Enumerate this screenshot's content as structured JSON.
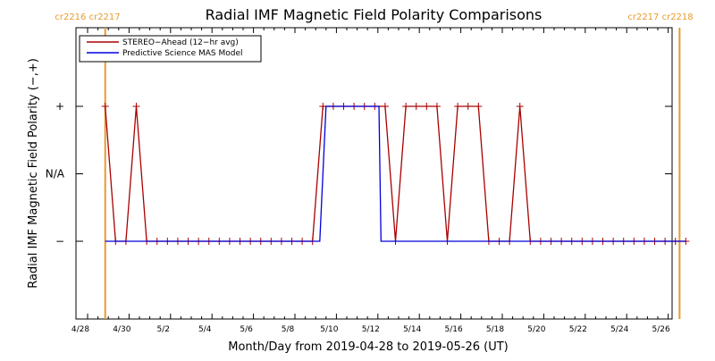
{
  "chart_data": {
    "type": "line",
    "title": "Radial IMF Magnetic Field Polarity Comparisons",
    "xlabel": "Month/Day from 2019-04-28 to 2019-05-26 (UT)",
    "ylabel": "Radial IMF Magnetic Field Polarity (−,+)",
    "xlim": [
      0,
      28.6
    ],
    "ylim": [
      -2,
      2
    ],
    "x_ticks": [
      {
        "value": 0,
        "label": "4/28"
      },
      {
        "value": 2,
        "label": "4/30"
      },
      {
        "value": 4,
        "label": "5/2"
      },
      {
        "value": 6,
        "label": "5/4"
      },
      {
        "value": 8,
        "label": "5/6"
      },
      {
        "value": 10,
        "label": "5/8"
      },
      {
        "value": 12,
        "label": "5/10"
      },
      {
        "value": 14,
        "label": "5/12"
      },
      {
        "value": 16,
        "label": "5/14"
      },
      {
        "value": 18,
        "label": "5/16"
      },
      {
        "value": 20,
        "label": "5/18"
      },
      {
        "value": 22,
        "label": "5/20"
      },
      {
        "value": 24,
        "label": "5/22"
      },
      {
        "value": 26,
        "label": "5/24"
      },
      {
        "value": 28,
        "label": "5/26"
      }
    ],
    "y_ticks": [
      {
        "value": 1,
        "label": "+"
      },
      {
        "value": 0,
        "label": "N/A"
      },
      {
        "value": -1,
        "label": "−"
      }
    ],
    "carrington_markers": [
      {
        "x": 0.85,
        "labels": [
          "cr2216",
          "cr2217"
        ]
      },
      {
        "x": 28.55,
        "labels": [
          "cr2217",
          "cr2218"
        ]
      }
    ],
    "legend": {
      "placement": "top-left",
      "entries": [
        {
          "name": "STEREO−Ahead (12−hr avg)",
          "color": "#aa0000"
        },
        {
          "name": "Predictive Science MAS Model",
          "color": "#0000dd"
        }
      ]
    },
    "series": [
      {
        "name": "STEREO−Ahead (12−hr avg)",
        "color": "#aa0000",
        "marker": "plus",
        "x": [
          0.85,
          1.35,
          1.85,
          2.35,
          2.85,
          3.35,
          3.85,
          4.35,
          4.85,
          5.35,
          5.85,
          6.35,
          6.85,
          7.35,
          7.85,
          8.35,
          8.85,
          9.35,
          9.85,
          10.35,
          10.85,
          11.35,
          11.85,
          12.35,
          12.85,
          13.35,
          13.85,
          14.35,
          14.85,
          15.35,
          15.85,
          16.35,
          16.85,
          17.35,
          17.85,
          18.35,
          18.85,
          19.35,
          19.85,
          20.35,
          20.85,
          21.35,
          21.85,
          22.35,
          22.85,
          23.35,
          23.85,
          24.35,
          24.85,
          25.35,
          25.85,
          26.35,
          26.85,
          27.35,
          27.85,
          28.35,
          28.85
        ],
        "y": [
          1,
          -1,
          -1,
          1,
          -1,
          -1,
          -1,
          -1,
          -1,
          -1,
          -1,
          -1,
          -1,
          -1,
          -1,
          -1,
          -1,
          -1,
          -1,
          -1,
          -1,
          1,
          1,
          1,
          1,
          1,
          1,
          1,
          -1,
          1,
          1,
          1,
          1,
          -1,
          1,
          1,
          1,
          -1,
          -1,
          -1,
          1,
          -1,
          -1,
          -1,
          -1,
          -1,
          -1,
          -1,
          -1,
          -1,
          -1,
          -1,
          -1,
          -1,
          -1,
          -1,
          -1
        ]
      },
      {
        "name": "Predictive Science MAS Model",
        "color": "#0000dd",
        "marker": "none",
        "x": [
          0.85,
          11.2,
          11.5,
          14.05,
          14.15,
          28.85
        ],
        "y": [
          -1,
          -1,
          1,
          1,
          -1,
          -1
        ]
      }
    ]
  }
}
